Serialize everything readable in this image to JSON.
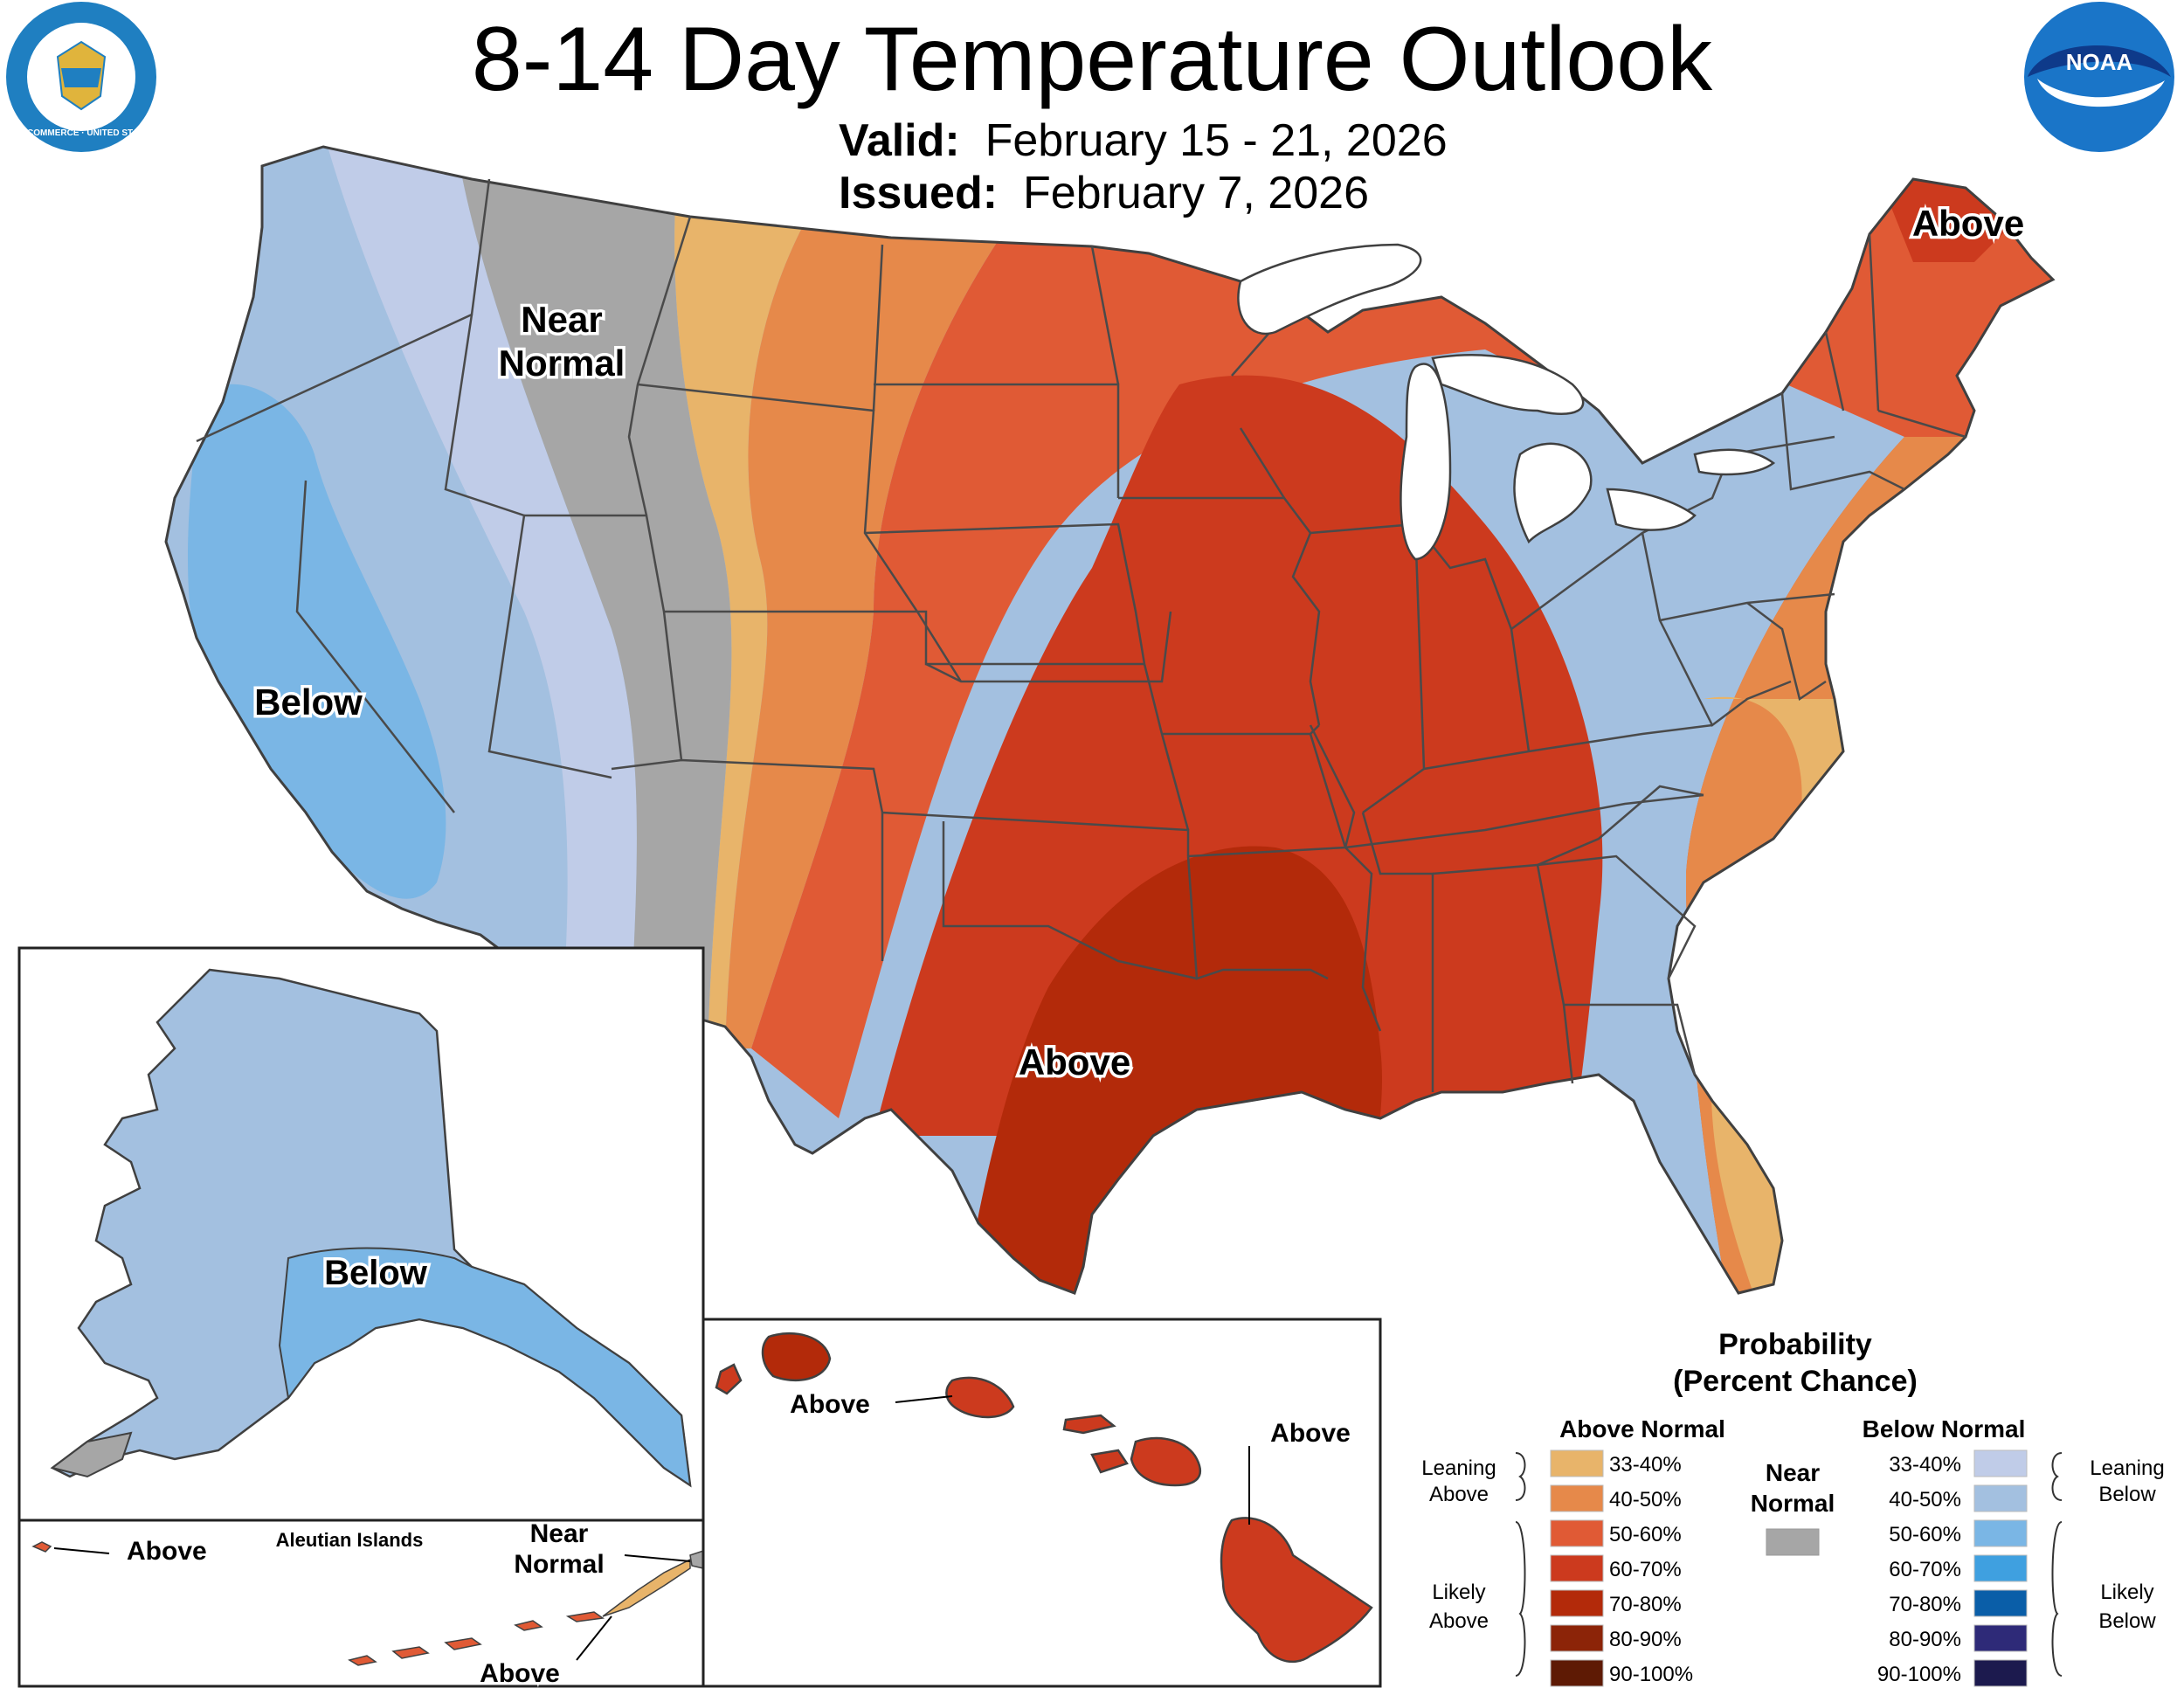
{
  "header": {
    "title": "8-14 Day Temperature Outlook",
    "valid_label": "Valid:",
    "valid_value": "February 15 - 21, 2026",
    "issued_label": "Issued:",
    "issued_value": "February 7, 2026"
  },
  "logos": {
    "left": {
      "name": "department-of-commerce-seal",
      "text": "DEPARTMENT OF COMMERCE · UNITED STATES OF AMERICA",
      "color": "#1f7fc1"
    },
    "right": {
      "name": "noaa-logo",
      "text": "NOAA",
      "color": "#1a75c8"
    }
  },
  "map_labels": {
    "near_normal_1": "Near",
    "near_normal_2": "Normal",
    "below_west": "Below",
    "above_northeast": "Above",
    "above_south": "Above",
    "alaska_below": "Below",
    "aleutian_title": "Aleutian Islands",
    "aleutian_above_west": "Above",
    "aleutian_near_1": "Near",
    "aleutian_near_2": "Normal",
    "aleutian_above_east": "Above",
    "hawaii_above_1": "Above",
    "hawaii_above_2": "Above"
  },
  "legend": {
    "title_1": "Probability",
    "title_2": "(Percent Chance)",
    "above_header": "Above Normal",
    "below_header": "Below Normal",
    "near_header_1": "Near",
    "near_header_2": "Normal",
    "near_color": "#a6a6a6",
    "leaning_above_1": "Leaning",
    "leaning_above_2": "Above",
    "likely_above_1": "Likely",
    "likely_above_2": "Above",
    "leaning_below_1": "Leaning",
    "leaning_below_2": "Below",
    "likely_below_1": "Likely",
    "likely_below_2": "Below",
    "above": [
      {
        "range": "33-40%",
        "color": "#e8b46a"
      },
      {
        "range": "40-50%",
        "color": "#e6894a"
      },
      {
        "range": "50-60%",
        "color": "#e05a35"
      },
      {
        "range": "60-70%",
        "color": "#cc3a1e"
      },
      {
        "range": "70-80%",
        "color": "#b32a0a"
      },
      {
        "range": "80-90%",
        "color": "#8c2408"
      },
      {
        "range": "90-100%",
        "color": "#5e1a04"
      }
    ],
    "below": [
      {
        "range": "33-40%",
        "color": "#c0cce8"
      },
      {
        "range": "40-50%",
        "color": "#a3c0e0"
      },
      {
        "range": "50-60%",
        "color": "#7ab6e5"
      },
      {
        "range": "60-70%",
        "color": "#3fa0e0"
      },
      {
        "range": "70-80%",
        "color": "#0a5ea8"
      },
      {
        "range": "80-90%",
        "color": "#2e2a78"
      },
      {
        "range": "90-100%",
        "color": "#1c1a4e"
      }
    ]
  }
}
